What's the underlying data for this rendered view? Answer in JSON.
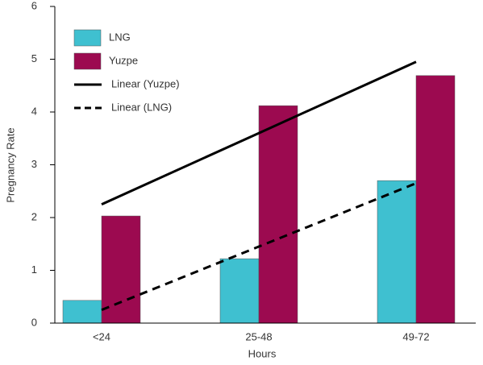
{
  "chart_data": {
    "type": "bar",
    "x_label": "Hours",
    "y_label": "Pregnancy Rate",
    "categories": [
      "<24",
      "25-48",
      "49-72"
    ],
    "series": [
      {
        "name": "LNG",
        "type": "bar",
        "color": "#3fc0d0",
        "values": [
          0.43,
          1.22,
          2.7
        ]
      },
      {
        "name": "Yuzpe",
        "type": "bar",
        "color": "#9c0a50",
        "values": [
          2.03,
          4.12,
          4.69
        ]
      },
      {
        "name": "Linear (Yuzpe)",
        "type": "line",
        "dashed": false,
        "color": "#000000",
        "values": [
          2.25,
          3.6,
          4.95
        ]
      },
      {
        "name": "Linear (LNG)",
        "type": "line",
        "dashed": true,
        "color": "#000000",
        "values": [
          0.25,
          1.45,
          2.65
        ]
      }
    ],
    "ylim": [
      0,
      6
    ],
    "yticks": [
      0,
      1,
      2,
      3,
      4,
      5,
      6
    ],
    "grid": false
  }
}
